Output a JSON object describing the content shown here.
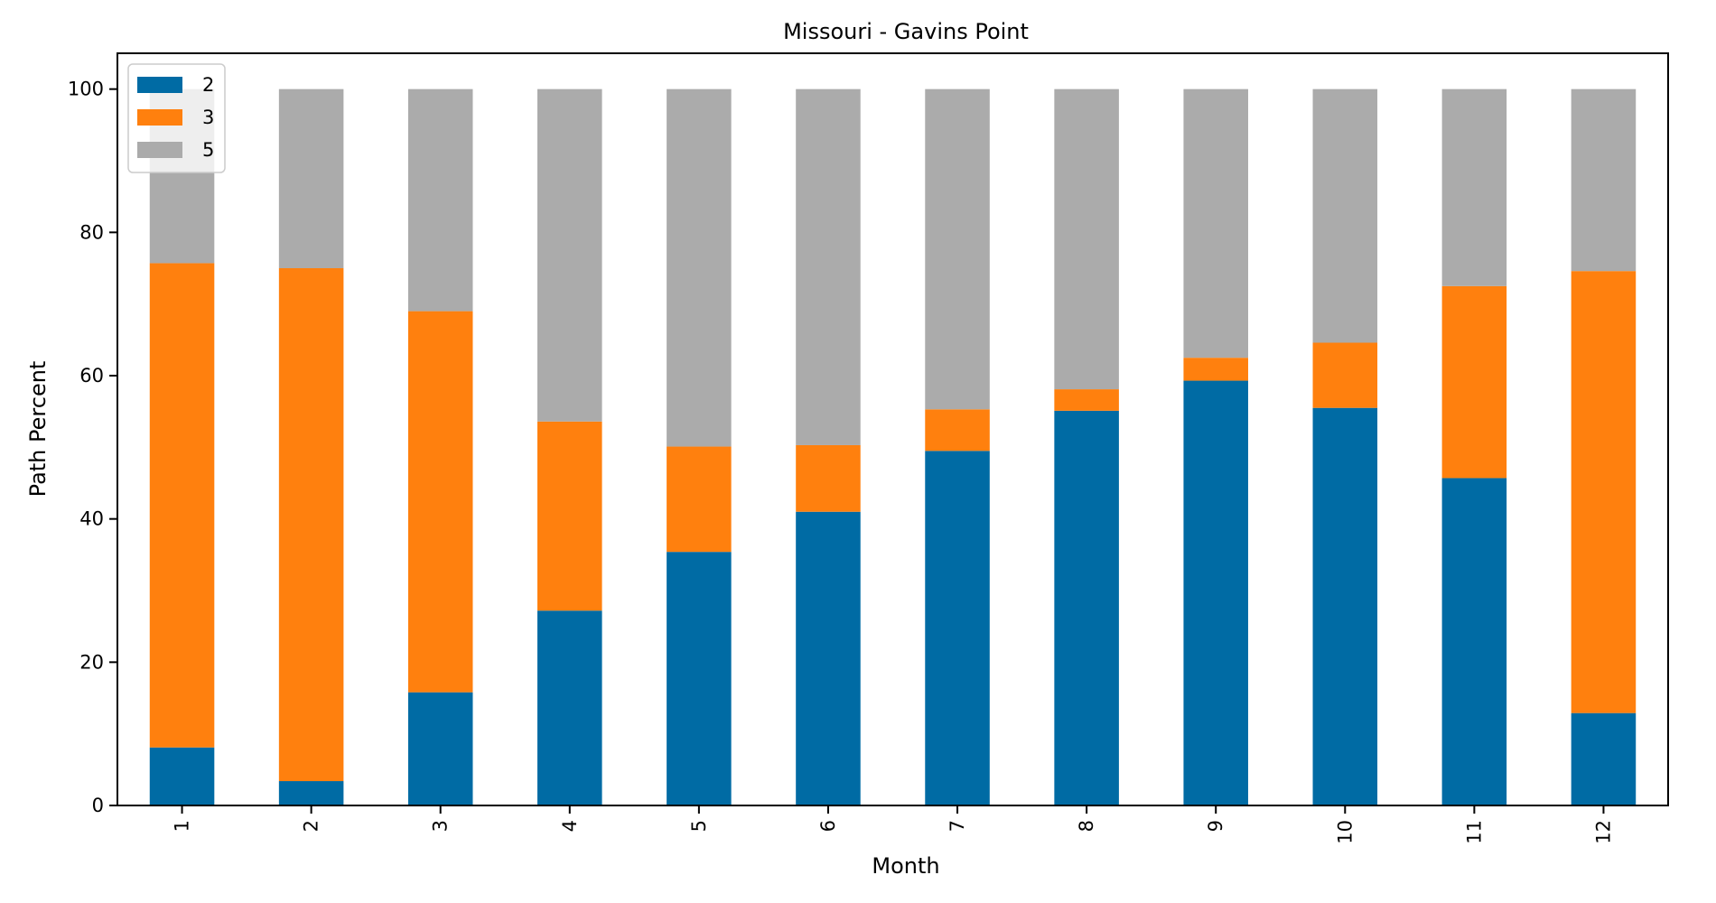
{
  "chart_data": {
    "type": "bar",
    "stacked": true,
    "title": "Missouri - Gavins Point",
    "xlabel": "Month",
    "ylabel": "Path Percent",
    "ylim": [
      0,
      105
    ],
    "yticks": [
      0,
      20,
      40,
      60,
      80,
      100
    ],
    "categories": [
      "1",
      "2",
      "3",
      "4",
      "5",
      "6",
      "7",
      "8",
      "9",
      "10",
      "11",
      "12"
    ],
    "grid": false,
    "legend_position": "top-left",
    "series": [
      {
        "name": "2",
        "color": "#006ba4",
        "values": [
          8.1,
          3.4,
          15.8,
          27.2,
          35.4,
          41.0,
          49.5,
          55.1,
          59.3,
          55.5,
          45.7,
          12.9
        ]
      },
      {
        "name": "3",
        "color": "#ff800e",
        "values": [
          67.6,
          71.6,
          53.2,
          26.4,
          14.7,
          9.3,
          5.8,
          3.0,
          3.2,
          9.1,
          26.8,
          61.7
        ]
      },
      {
        "name": "5",
        "color": "#ababab",
        "values": [
          24.3,
          25.0,
          31.0,
          46.4,
          49.9,
          49.7,
          44.7,
          41.9,
          37.5,
          35.4,
          27.5,
          25.4
        ]
      }
    ]
  }
}
